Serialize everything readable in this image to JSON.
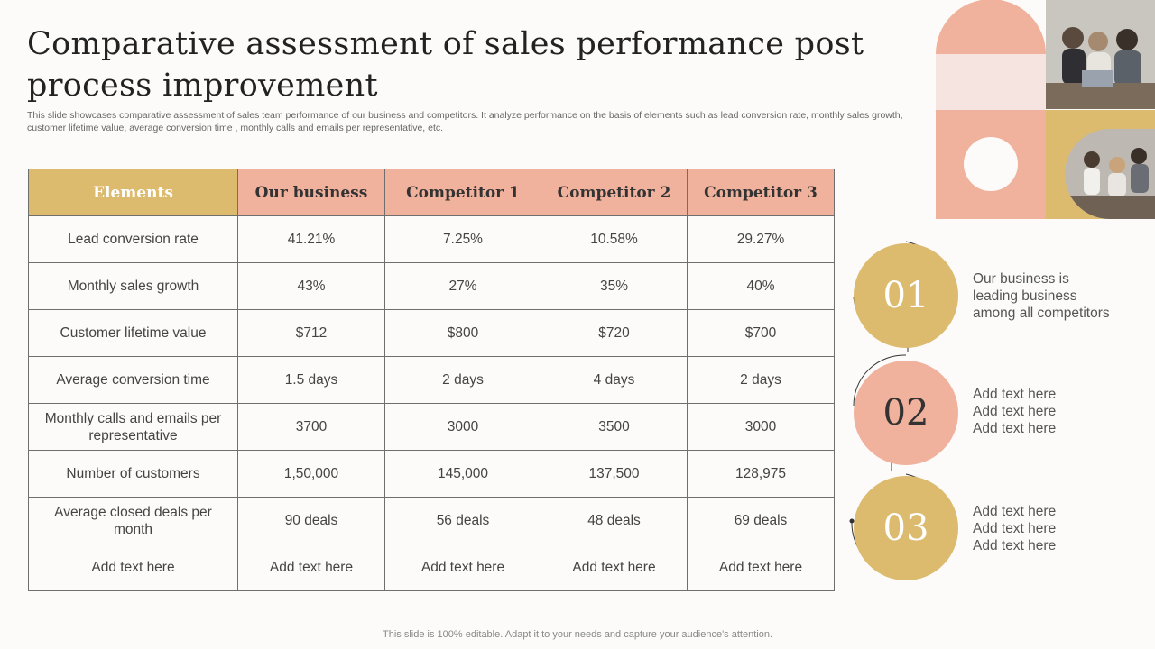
{
  "slide": {
    "title": "Comparative assessment of sales performance post process improvement",
    "subtitle": "This slide showcases comparative assessment of sales team performance of our business and competitors. It analyze performance on the basis of elements such as lead conversion rate, monthly sales growth, customer lifetime value, average conversion time , monthly calls and emails per representative, etc.",
    "footer": "This slide is 100% editable. Adapt it to your needs and capture your audience's attention."
  },
  "table": {
    "headers": [
      "Elements",
      "Our business",
      "Competitor 1",
      "Competitor 2",
      "Competitor 3"
    ],
    "rows": [
      [
        "Lead conversion rate",
        "41.21%",
        "7.25%",
        "10.58%",
        "29.27%"
      ],
      [
        "Monthly sales growth",
        "43%",
        "27%",
        "35%",
        "40%"
      ],
      [
        "Customer lifetime value",
        "$712",
        "$800",
        "$720",
        "$700"
      ],
      [
        "Average conversion time",
        "1.5 days",
        "2 days",
        "4 days",
        "2 days"
      ],
      [
        "Monthly  calls and emails per representative",
        "3700",
        "3000",
        "3500",
        "3000"
      ],
      [
        "Number of customers",
        "1,50,000",
        "145,000",
        "137,500",
        "128,975"
      ],
      [
        "Average closed deals per month",
        "90 deals",
        "56 deals",
        "48 deals",
        "69 deals"
      ],
      [
        "Add text here",
        "Add text here",
        "Add text here",
        "Add text here",
        "Add text here"
      ]
    ]
  },
  "points": [
    {
      "number": "01",
      "lines": [
        "Our business is",
        "leading business",
        "among all competitors"
      ],
      "color": "#dcba6e"
    },
    {
      "number": "02",
      "lines": [
        "Add text here",
        "Add text here",
        "Add text here"
      ],
      "color": "#f0b29d"
    },
    {
      "number": "03",
      "lines": [
        "Add text here",
        "Add text here",
        "Add text here"
      ],
      "color": "#dcba6e"
    }
  ],
  "colors": {
    "gold": "#dcba6e",
    "salmon": "#f0b29d",
    "pale_pink": "#f6e4e0"
  }
}
